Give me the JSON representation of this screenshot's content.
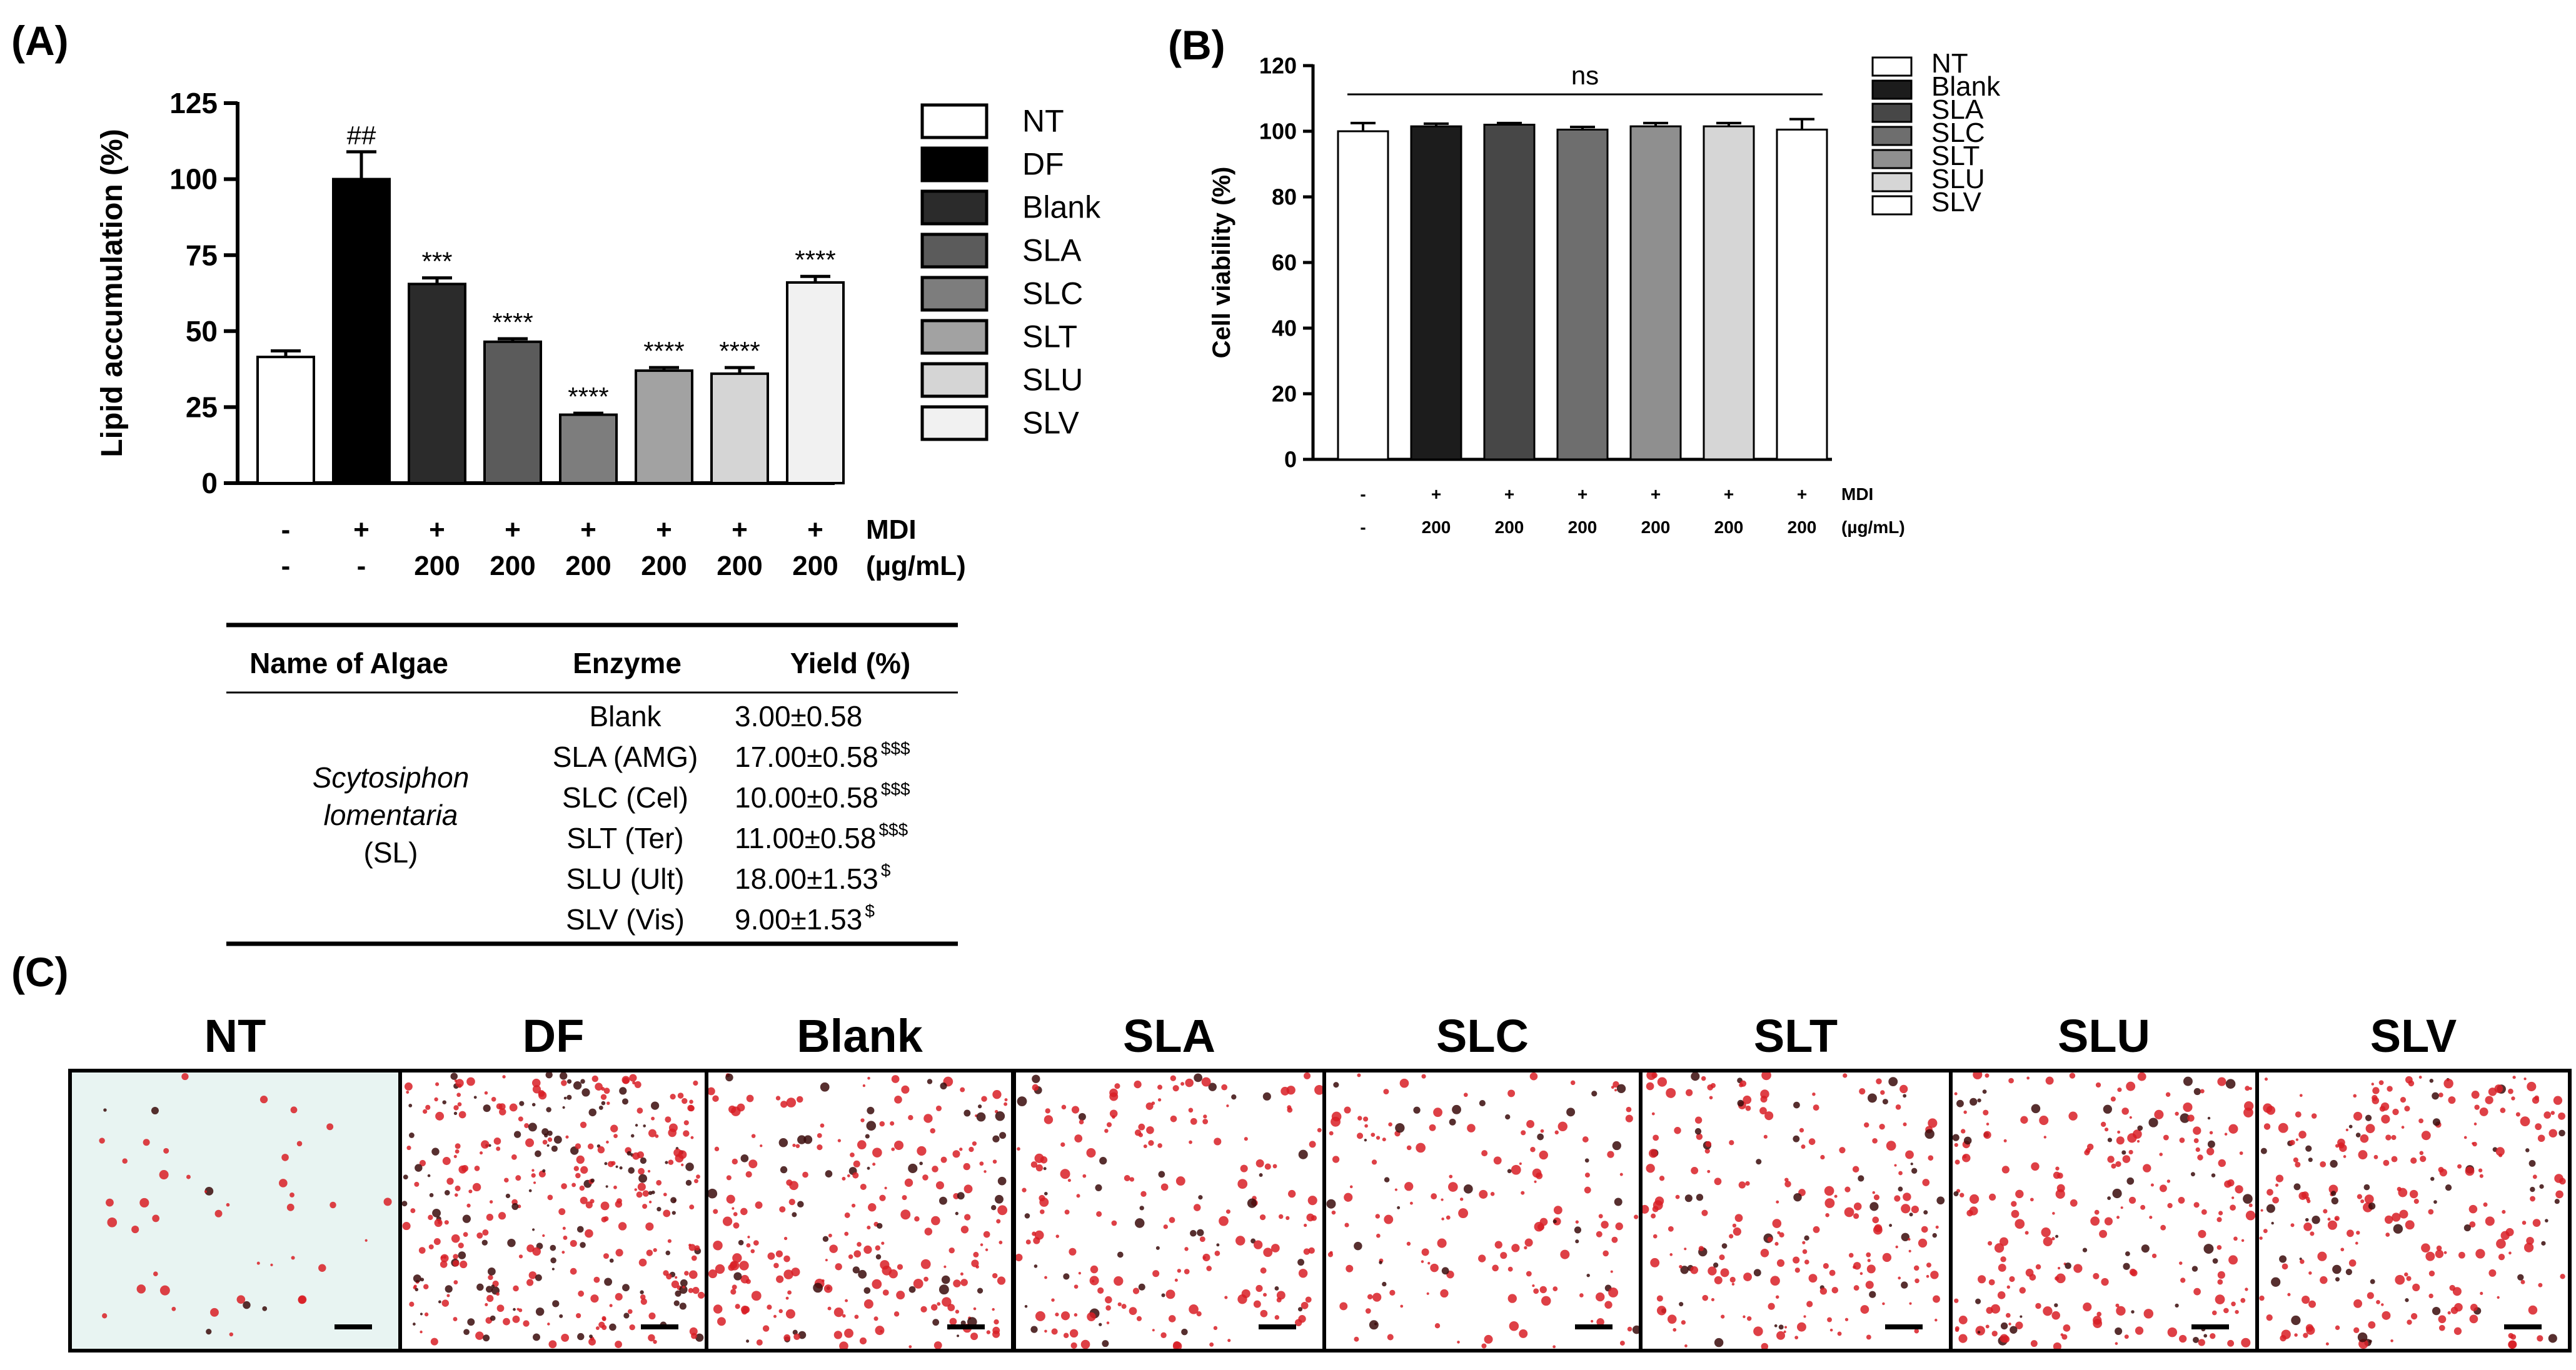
{
  "panel_labels": {
    "a": "(A)",
    "b": "(B)",
    "c": "(C)"
  },
  "chart_data": [
    {
      "type": "bar",
      "panel": "(A)",
      "ylabel": "Lipid accumulation (%)",
      "ylim": [
        0,
        125
      ],
      "yticks": [
        "0",
        "25",
        "50",
        "75",
        "100",
        "125"
      ],
      "categories": [
        "NT",
        "DF",
        "Blank",
        "SLA",
        "SLC",
        "SLT",
        "SLU",
        "SLV"
      ],
      "values": [
        41.5,
        100,
        65.5,
        46.5,
        22.5,
        37,
        36,
        66
      ],
      "errors": [
        2,
        9,
        2,
        1,
        0.5,
        1,
        2,
        2
      ],
      "colors": [
        "#ffffff",
        "#000000",
        "#2b2b2b",
        "#5b5b5b",
        "#7d7d7d",
        "#a2a2a2",
        "#d5d5d5",
        "#f1f1f1"
      ],
      "annotations": [
        "",
        "##",
        "***",
        "****",
        "****",
        "****",
        "****",
        "****"
      ],
      "condition_rows": [
        {
          "label": "MDI",
          "values": [
            "-",
            "+",
            "+",
            "+",
            "+",
            "+",
            "+",
            "+"
          ]
        },
        {
          "label": "(µg/mL)",
          "values": [
            "-",
            "-",
            "200",
            "200",
            "200",
            "200",
            "200",
            "200"
          ]
        }
      ],
      "legend": {
        "placement": "right",
        "entries": [
          "NT",
          "DF",
          "Blank",
          "SLA",
          "SLC",
          "SLT",
          "SLU",
          "SLV"
        ]
      }
    },
    {
      "type": "bar",
      "panel": "(B)",
      "ylabel": "Cell viability (%)",
      "ylim": [
        0,
        120
      ],
      "yticks": [
        "0",
        "20",
        "40",
        "60",
        "80",
        "100",
        "120"
      ],
      "categories": [
        "NT",
        "Blank",
        "SLA",
        "SLC",
        "SLT",
        "SLU",
        "SLV"
      ],
      "values": [
        100,
        101.5,
        102,
        100.5,
        101.5,
        101.5,
        100.5
      ],
      "errors": [
        2.5,
        0.8,
        0.5,
        0.8,
        1.0,
        1.0,
        3.2
      ],
      "colors": [
        "#ffffff",
        "#1c1c1c",
        "#474747",
        "#6e6e6e",
        "#8f8f8f",
        "#d6d6d6",
        "#ffffff"
      ],
      "annotation": "ns",
      "condition_rows": [
        {
          "label": "MDI",
          "values": [
            "-",
            "+",
            "+",
            "+",
            "+",
            "+",
            "+"
          ]
        },
        {
          "label": "(µg/mL)",
          "values": [
            "-",
            "200",
            "200",
            "200",
            "200",
            "200",
            "200"
          ]
        }
      ],
      "legend": {
        "placement": "right",
        "entries": [
          "NT",
          "Blank",
          "SLA",
          "SLC",
          "SLT",
          "SLU",
          "SLV"
        ]
      }
    },
    {
      "type": "table",
      "headers": [
        "Name of Algae",
        "Enzyme",
        "Yield (%)"
      ],
      "algae_name": [
        "Scytosiphon",
        "lomentaria",
        "(SL)"
      ],
      "rows": [
        {
          "enzyme": "Blank",
          "yield": "3.00±0.58",
          "sup": ""
        },
        {
          "enzyme": "SLA (AMG)",
          "yield": "17.00±0.58",
          "sup": "$$$"
        },
        {
          "enzyme": "SLC (Cel)",
          "yield": "10.00±0.58",
          "sup": "$$$"
        },
        {
          "enzyme": "SLT (Ter)",
          "yield": "11.00±0.58",
          "sup": "$$$"
        },
        {
          "enzyme": "SLU (Ult)",
          "yield": "18.00±1.53",
          "sup": "$"
        },
        {
          "enzyme": "SLV (Vis)",
          "yield": "9.00±1.53",
          "sup": "$"
        }
      ]
    }
  ],
  "images": {
    "labels": [
      "NT",
      "DF",
      "Blank",
      "SLA",
      "SLC",
      "SLT",
      "SLU",
      "SLV"
    ],
    "stain_color": "#d81f26",
    "dark_color": "#3a0a0a",
    "background_tint": "#e8f4f2"
  }
}
